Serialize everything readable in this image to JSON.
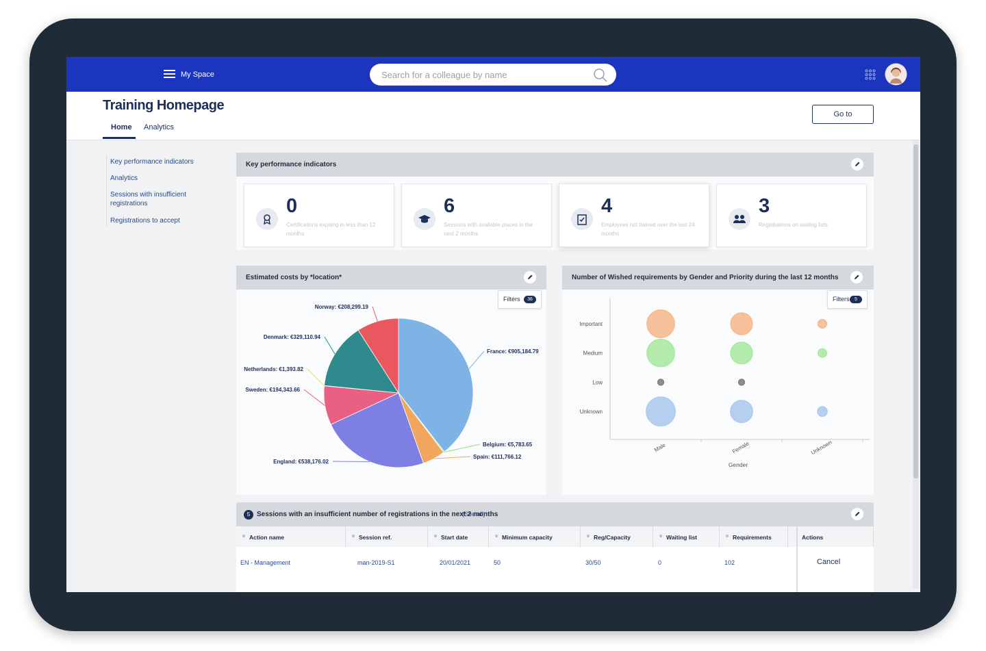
{
  "header": {
    "menu_label": "My Space",
    "search_placeholder": "Search for a colleague by name"
  },
  "page": {
    "title": "Training Homepage",
    "tabs": [
      "Home",
      "Analytics"
    ],
    "button": "Go to"
  },
  "sidebar": {
    "links": [
      "Key performance indicators",
      "Analytics",
      "Sessions with insufficient registrations",
      "Registrations to accept"
    ]
  },
  "kpi": {
    "title": "Key performance indicators",
    "cards": [
      {
        "value": 0,
        "label": "Certifications expiring in less than 12 months"
      },
      {
        "value": 6,
        "label": "Sessions with available places in the next 2 months"
      },
      {
        "value": 4,
        "label": "Employees not trained over the last 24 months"
      },
      {
        "value": 3,
        "label": "Registrations on waiting lists"
      }
    ]
  },
  "chart_data": [
    {
      "type": "pie",
      "title": "Estimated costs by *location*",
      "filters_label": "Filters",
      "filters_count": 36,
      "values": [
        905184.79,
        5783.65,
        111766.12,
        538176.02,
        194343.66,
        1393.82,
        329110.94,
        208299.19
      ],
      "value_labels": [
        "France: €905,184.79",
        "Belgium: €5,783.65",
        "Spain: €111,766.12",
        "England: €538,176.02",
        "Sweden: €194,343.66",
        "Netherlands: €1,393.82",
        "Denmark: €329,110.94",
        "Norway: €208,299.19"
      ],
      "colors": [
        "#7eb3e6",
        "#8fe27c",
        "#f2a55c",
        "#7d80e2",
        "#ea5f84",
        "#d9e27a",
        "#2e8a8c",
        "#e8585e"
      ]
    },
    {
      "type": "bubble",
      "title": "Number of Wished requirements by Gender and Priority during the last 12 months",
      "filters_label": "Filters",
      "filters_count": 5,
      "categories": [
        "Male",
        "Female",
        "Unknown"
      ],
      "xlabel": "Gender",
      "series": [
        {
          "name": "Important",
          "color": "#f4b68a",
          "values": [
            40,
            25,
            4
          ]
        },
        {
          "name": "Medium",
          "color": "#a6e79e",
          "values": [
            40,
            25,
            4
          ]
        },
        {
          "name": "Low",
          "color": "#7a7a7a",
          "values": [
            2,
            2,
            null
          ]
        },
        {
          "name": "Unknown",
          "color": "#a8c8ec",
          "values": [
            44,
            26,
            5
          ]
        }
      ]
    }
  ],
  "sessions_table": {
    "badge": 5,
    "title": "Sessions with an insufficient number of registrations in the next 2 months",
    "link": "(See all)",
    "columns": [
      "Action name",
      "Session ref.",
      "Start date",
      "Minimum capacity",
      "Reg/Capacity",
      "Waiting list",
      "Requirements",
      "Actions"
    ],
    "rows": [
      [
        "EN - Management",
        "man-2019-S1",
        "20/01/2021",
        50,
        "30/50",
        0,
        102,
        "Cancel"
      ]
    ]
  }
}
